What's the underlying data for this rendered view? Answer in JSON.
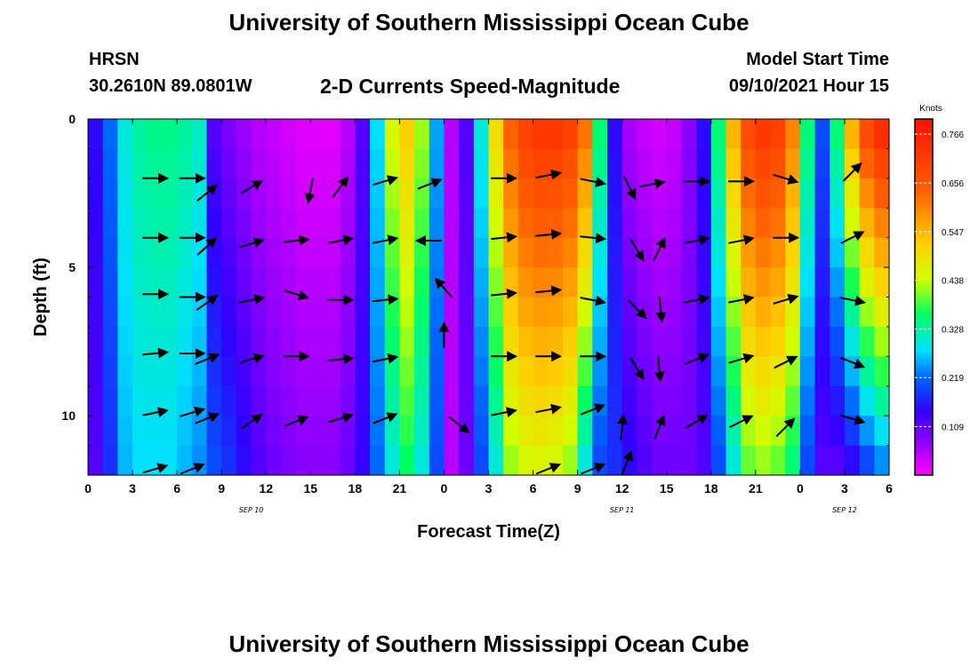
{
  "header": {
    "title": "University of Southern Mississippi Ocean Cube",
    "station_name": "HRSN",
    "station_coords": "30.2610N  89.0801W",
    "plot_title": "2-D Currents Speed-Magnitude",
    "model_start_label": "Model Start Time",
    "model_start_value": "09/10/2021 Hour 15"
  },
  "footer": {
    "title": "University of Southern Mississippi Ocean Cube"
  },
  "chart_data": {
    "type": "heatmap",
    "title": "2-D Currents Speed-Magnitude",
    "xlabel": "Forecast Time(Z)",
    "ylabel": "Depth (ft)",
    "x_ticks": [
      "0",
      "3",
      "6",
      "9",
      "12",
      "15",
      "18",
      "21",
      "0",
      "3",
      "6",
      "9",
      "12",
      "15",
      "18",
      "21",
      "0",
      "3",
      "6"
    ],
    "x_range_hours": [
      0,
      54
    ],
    "date_labels": [
      {
        "text": "SEP 10",
        "hour": 11
      },
      {
        "text": "SEP 11",
        "hour": 36
      },
      {
        "text": "SEP 12",
        "hour": 51
      }
    ],
    "y_ticks": [
      "0",
      "5",
      "10"
    ],
    "y_tick_values": [
      0,
      5,
      10
    ],
    "y_range": [
      0,
      12
    ],
    "colorbar": {
      "units": "Knots",
      "min": 0.0,
      "max": 0.8,
      "tick_labels": [
        "0.766",
        "0.656",
        "0.547",
        "0.438",
        "0.328",
        "0.219",
        "0.109"
      ],
      "tick_values": [
        0.766,
        0.656,
        0.547,
        0.438,
        0.328,
        0.219,
        0.109
      ]
    },
    "time_hours": [
      0,
      1,
      2,
      3,
      4,
      5,
      6,
      7,
      8,
      9,
      10,
      11,
      12,
      13,
      14,
      15,
      16,
      17,
      18,
      19,
      20,
      21,
      22,
      23,
      24,
      25,
      26,
      27,
      28,
      29,
      30,
      31,
      32,
      33,
      34,
      35,
      36,
      37,
      38,
      39,
      40,
      41,
      42,
      43,
      44,
      45,
      46,
      47,
      48,
      49,
      50,
      51,
      52,
      53
    ],
    "depth_ft": [
      0,
      1,
      2,
      3,
      4,
      5,
      6,
      7,
      8,
      9,
      10,
      11
    ],
    "speed_profile_knots": [
      0.15,
      0.22,
      0.3,
      0.33,
      0.34,
      0.34,
      0.33,
      0.31,
      0.12,
      0.09,
      0.07,
      0.05,
      0.04,
      0.03,
      0.02,
      0.02,
      0.02,
      0.05,
      0.12,
      0.28,
      0.45,
      0.52,
      0.42,
      0.25,
      0.05,
      0.12,
      0.3,
      0.5,
      0.64,
      0.7,
      0.72,
      0.72,
      0.7,
      0.62,
      0.35,
      0.15,
      0.06,
      0.04,
      0.03,
      0.04,
      0.08,
      0.15,
      0.35,
      0.55,
      0.68,
      0.72,
      0.7,
      0.6,
      0.35,
      0.2,
      0.35,
      0.55,
      0.68,
      0.74
    ],
    "depth_profile_bottom_speed_knots": [
      0.12,
      0.18,
      0.26,
      0.28,
      0.28,
      0.28,
      0.26,
      0.24,
      0.2,
      0.18,
      0.15,
      0.12,
      0.1,
      0.09,
      0.08,
      0.08,
      0.08,
      0.1,
      0.14,
      0.22,
      0.3,
      0.36,
      0.3,
      0.2,
      0.05,
      0.1,
      0.2,
      0.3,
      0.42,
      0.45,
      0.46,
      0.45,
      0.42,
      0.3,
      0.2,
      0.18,
      0.15,
      0.12,
      0.1,
      0.1,
      0.1,
      0.12,
      0.2,
      0.3,
      0.4,
      0.42,
      0.4,
      0.35,
      0.2,
      0.12,
      0.12,
      0.15,
      0.2,
      0.24
    ],
    "vectors": [
      {
        "hour": 4.5,
        "depth": 2,
        "dx": 1,
        "dy": 0
      },
      {
        "hour": 7,
        "depth": 2,
        "dx": 1,
        "dy": 0
      },
      {
        "hour": 8,
        "depth": 2.5,
        "dx": 1,
        "dy": -0.8
      },
      {
        "hour": 11,
        "depth": 2.3,
        "dx": 1,
        "dy": -0.6
      },
      {
        "hour": 15,
        "depth": 2.4,
        "dx": -0.2,
        "dy": 1
      },
      {
        "hour": 17,
        "depth": 2.3,
        "dx": 0.6,
        "dy": -0.8
      },
      {
        "hour": 20,
        "depth": 2.1,
        "dx": 1,
        "dy": -0.3
      },
      {
        "hour": 23,
        "depth": 2.2,
        "dx": 1,
        "dy": -0.4
      },
      {
        "hour": 28,
        "depth": 2,
        "dx": 1,
        "dy": 0
      },
      {
        "hour": 31,
        "depth": 1.9,
        "dx": 1,
        "dy": -0.2
      },
      {
        "hour": 34,
        "depth": 2.1,
        "dx": 1,
        "dy": 0.2
      },
      {
        "hour": 36.5,
        "depth": 2.3,
        "dx": 0.5,
        "dy": 1
      },
      {
        "hour": 38,
        "depth": 2.2,
        "dx": 1,
        "dy": -0.2
      },
      {
        "hour": 41,
        "depth": 2.1,
        "dx": 1,
        "dy": 0
      },
      {
        "hour": 44,
        "depth": 2.1,
        "dx": 1,
        "dy": 0
      },
      {
        "hour": 47,
        "depth": 2,
        "dx": 1,
        "dy": 0.3
      },
      {
        "hour": 51.5,
        "depth": 1.8,
        "dx": 1,
        "dy": -1
      },
      {
        "hour": 4.5,
        "depth": 4,
        "dx": 1,
        "dy": 0
      },
      {
        "hour": 7,
        "depth": 4,
        "dx": 1,
        "dy": 0
      },
      {
        "hour": 8,
        "depth": 4.3,
        "dx": 1,
        "dy": -0.9
      },
      {
        "hour": 11,
        "depth": 4.2,
        "dx": 1,
        "dy": -0.3
      },
      {
        "hour": 14,
        "depth": 4.1,
        "dx": 1,
        "dy": -0.1
      },
      {
        "hour": 17,
        "depth": 4.1,
        "dx": 1,
        "dy": -0.2
      },
      {
        "hour": 20,
        "depth": 4.1,
        "dx": 1,
        "dy": -0.2
      },
      {
        "hour": 23,
        "depth": 4.1,
        "dx": -1,
        "dy": 0
      },
      {
        "hour": 28,
        "depth": 4,
        "dx": 1,
        "dy": -0.1
      },
      {
        "hour": 31,
        "depth": 3.9,
        "dx": 1,
        "dy": -0.1
      },
      {
        "hour": 34,
        "depth": 4,
        "dx": 1,
        "dy": 0.1
      },
      {
        "hour": 37,
        "depth": 4.4,
        "dx": 0.6,
        "dy": 1
      },
      {
        "hour": 38.5,
        "depth": 4.4,
        "dx": 0.5,
        "dy": -1
      },
      {
        "hour": 41,
        "depth": 4.1,
        "dx": 1,
        "dy": -0.2
      },
      {
        "hour": 44,
        "depth": 4.1,
        "dx": 1,
        "dy": -0.2
      },
      {
        "hour": 47,
        "depth": 4,
        "dx": 1,
        "dy": 0
      },
      {
        "hour": 51.5,
        "depth": 4,
        "dx": 1,
        "dy": -0.5
      },
      {
        "hour": 4.5,
        "depth": 5.9,
        "dx": 1,
        "dy": 0
      },
      {
        "hour": 7,
        "depth": 6,
        "dx": 1,
        "dy": 0
      },
      {
        "hour": 8,
        "depth": 6.2,
        "dx": 1,
        "dy": -0.7
      },
      {
        "hour": 11,
        "depth": 6.1,
        "dx": 1,
        "dy": -0.2
      },
      {
        "hour": 14,
        "depth": 5.9,
        "dx": 1,
        "dy": 0.3
      },
      {
        "hour": 17,
        "depth": 6.1,
        "dx": 1,
        "dy": 0
      },
      {
        "hour": 20,
        "depth": 6.1,
        "dx": 1,
        "dy": -0.1
      },
      {
        "hour": 24,
        "depth": 5.7,
        "dx": -0.8,
        "dy": -0.9
      },
      {
        "hour": 28,
        "depth": 5.9,
        "dx": 1,
        "dy": -0.1
      },
      {
        "hour": 31,
        "depth": 5.8,
        "dx": 1,
        "dy": -0.1
      },
      {
        "hour": 34,
        "depth": 6.1,
        "dx": 1,
        "dy": 0.2
      },
      {
        "hour": 37,
        "depth": 6.4,
        "dx": 0.8,
        "dy": 0.8
      },
      {
        "hour": 38.6,
        "depth": 6.4,
        "dx": 0.1,
        "dy": 1
      },
      {
        "hour": 41,
        "depth": 6.1,
        "dx": 1,
        "dy": -0.2
      },
      {
        "hour": 44,
        "depth": 6.1,
        "dx": 1,
        "dy": -0.2
      },
      {
        "hour": 47,
        "depth": 6.1,
        "dx": 1,
        "dy": -0.3
      },
      {
        "hour": 51.5,
        "depth": 6.1,
        "dx": 1,
        "dy": 0.2
      },
      {
        "hour": 4.5,
        "depth": 7.9,
        "dx": 1,
        "dy": -0.1
      },
      {
        "hour": 7,
        "depth": 7.9,
        "dx": 1,
        "dy": 0
      },
      {
        "hour": 8,
        "depth": 8.1,
        "dx": 1,
        "dy": -0.4
      },
      {
        "hour": 11,
        "depth": 8.1,
        "dx": 1,
        "dy": -0.3
      },
      {
        "hour": 14,
        "depth": 8,
        "dx": 1,
        "dy": 0
      },
      {
        "hour": 17,
        "depth": 8.1,
        "dx": 1,
        "dy": -0.1
      },
      {
        "hour": 20,
        "depth": 8.1,
        "dx": 1,
        "dy": -0.2
      },
      {
        "hour": 24,
        "depth": 7.3,
        "dx": 0,
        "dy": -1
      },
      {
        "hour": 28,
        "depth": 8,
        "dx": 1,
        "dy": 0
      },
      {
        "hour": 31,
        "depth": 8,
        "dx": 1,
        "dy": 0
      },
      {
        "hour": 34,
        "depth": 8,
        "dx": 1,
        "dy": 0
      },
      {
        "hour": 37,
        "depth": 8.4,
        "dx": 0.6,
        "dy": 1
      },
      {
        "hour": 38.5,
        "depth": 8.4,
        "dx": 0.1,
        "dy": 1
      },
      {
        "hour": 41,
        "depth": 8.1,
        "dx": 1,
        "dy": -0.4
      },
      {
        "hour": 44,
        "depth": 8.1,
        "dx": 1,
        "dy": -0.3
      },
      {
        "hour": 47,
        "depth": 8.2,
        "dx": 1,
        "dy": -0.5
      },
      {
        "hour": 51.5,
        "depth": 8.2,
        "dx": 1,
        "dy": 0.4
      },
      {
        "hour": 4.5,
        "depth": 9.9,
        "dx": 1,
        "dy": -0.2
      },
      {
        "hour": 7,
        "depth": 9.9,
        "dx": 1,
        "dy": -0.3
      },
      {
        "hour": 8,
        "depth": 10.1,
        "dx": 1,
        "dy": -0.4
      },
      {
        "hour": 11,
        "depth": 10.2,
        "dx": 1,
        "dy": -0.7
      },
      {
        "hour": 14,
        "depth": 10.2,
        "dx": 1,
        "dy": -0.4
      },
      {
        "hour": 17,
        "depth": 10.1,
        "dx": 1,
        "dy": -0.3
      },
      {
        "hour": 20,
        "depth": 10.1,
        "dx": 1,
        "dy": -0.4
      },
      {
        "hour": 25,
        "depth": 10.3,
        "dx": 1,
        "dy": 0.8
      },
      {
        "hour": 28,
        "depth": 9.9,
        "dx": 1,
        "dy": -0.2
      },
      {
        "hour": 31,
        "depth": 9.8,
        "dx": 1,
        "dy": -0.2
      },
      {
        "hour": 34,
        "depth": 9.8,
        "dx": 1,
        "dy": -0.4
      },
      {
        "hour": 36,
        "depth": 10.4,
        "dx": 0.1,
        "dy": -1
      },
      {
        "hour": 38.5,
        "depth": 10.4,
        "dx": 0.4,
        "dy": -1
      },
      {
        "hour": 41,
        "depth": 10.2,
        "dx": 1,
        "dy": -0.6
      },
      {
        "hour": 44,
        "depth": 10.2,
        "dx": 1,
        "dy": -0.5
      },
      {
        "hour": 47,
        "depth": 10.4,
        "dx": 0.8,
        "dy": -0.8
      },
      {
        "hour": 51.5,
        "depth": 10.1,
        "dx": 1,
        "dy": 0.3
      },
      {
        "hour": 4.5,
        "depth": 11.8,
        "dx": 1,
        "dy": -0.3
      },
      {
        "hour": 7,
        "depth": 11.8,
        "dx": 1,
        "dy": -0.4
      },
      {
        "hour": 31,
        "depth": 11.8,
        "dx": 1,
        "dy": -0.4
      },
      {
        "hour": 34,
        "depth": 11.8,
        "dx": 1,
        "dy": -0.4
      },
      {
        "hour": 36.3,
        "depth": 11.6,
        "dx": 0.4,
        "dy": -1
      }
    ]
  }
}
